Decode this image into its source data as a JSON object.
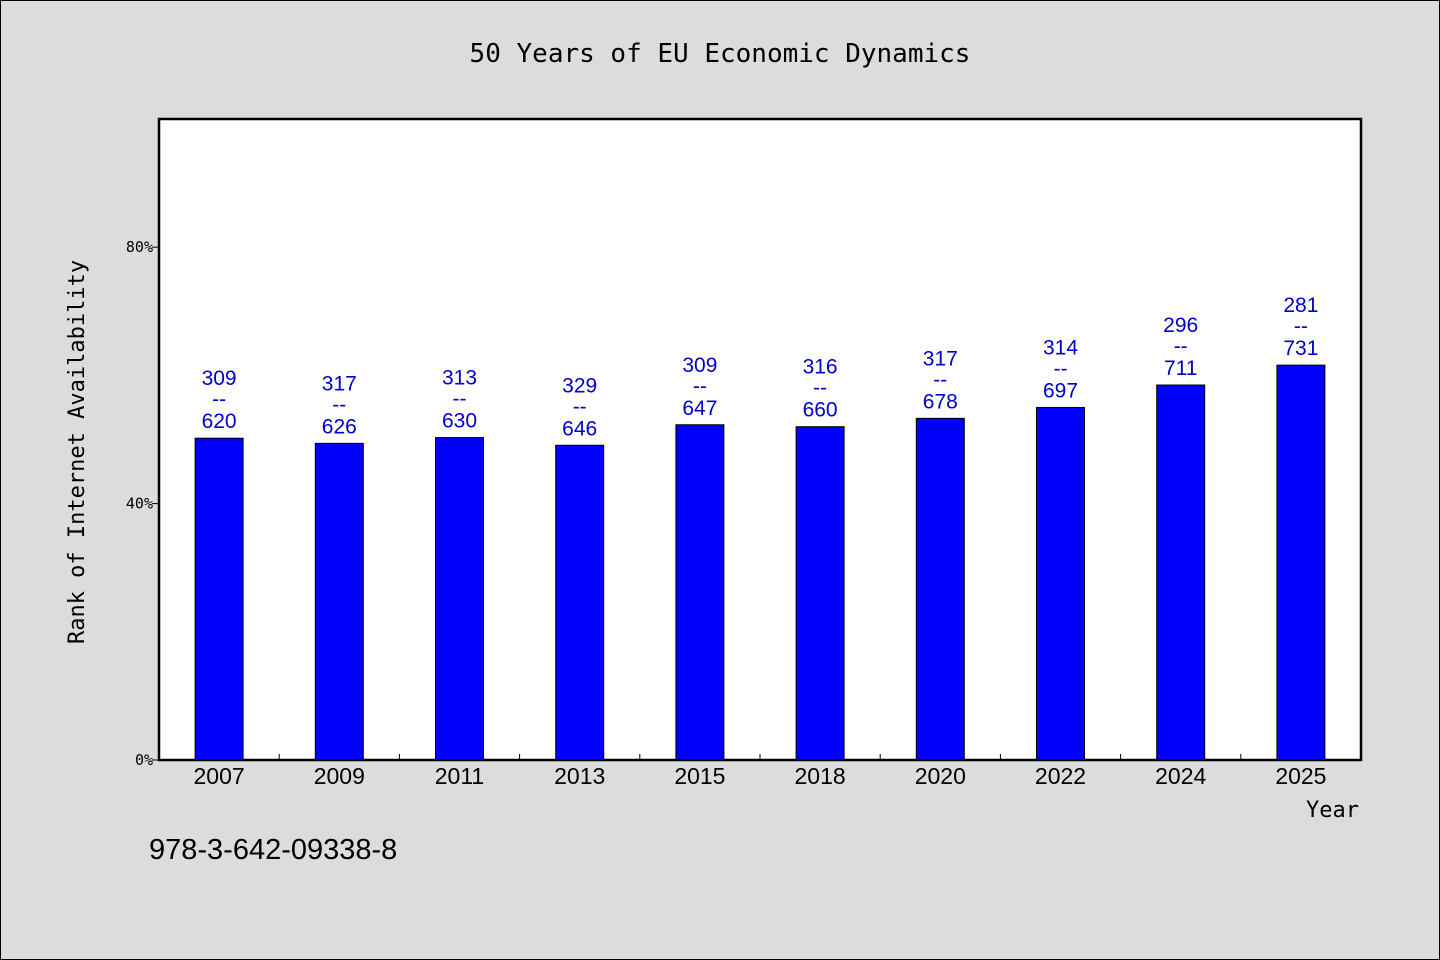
{
  "chart_data": {
    "type": "bar",
    "title": "50 Years of EU Economic Dynamics",
    "xlabel": "Year",
    "ylabel": "Rank of Internet Availability",
    "categories": [
      "2007",
      "2009",
      "2011",
      "2013",
      "2015",
      "2018",
      "2020",
      "2022",
      "2024",
      "2025"
    ],
    "values": [
      50.2,
      49.4,
      50.3,
      49.1,
      52.3,
      52.0,
      53.3,
      55.0,
      58.5,
      61.6
    ],
    "bar_labels": [
      {
        "top": "309",
        "sep": "--",
        "bottom": "620"
      },
      {
        "top": "317",
        "sep": "--",
        "bottom": "626"
      },
      {
        "top": "313",
        "sep": "--",
        "bottom": "630"
      },
      {
        "top": "329",
        "sep": "--",
        "bottom": "646"
      },
      {
        "top": "309",
        "sep": "--",
        "bottom": "647"
      },
      {
        "top": "316",
        "sep": "--",
        "bottom": "660"
      },
      {
        "top": "317",
        "sep": "--",
        "bottom": "678"
      },
      {
        "top": "314",
        "sep": "--",
        "bottom": "697"
      },
      {
        "top": "296",
        "sep": "--",
        "bottom": "711"
      },
      {
        "top": "281",
        "sep": "--",
        "bottom": "731"
      }
    ],
    "yticks": [
      0,
      40,
      80
    ],
    "ytick_labels": [
      "0%",
      "40%",
      "80%"
    ],
    "ylim": [
      0,
      100
    ],
    "grid": false,
    "bar_color": "#0000ff",
    "label_color": "#0000cc",
    "background": "#dcdcdc",
    "plot_background": "#ffffff"
  },
  "footnote": "978-3-642-09338-8"
}
